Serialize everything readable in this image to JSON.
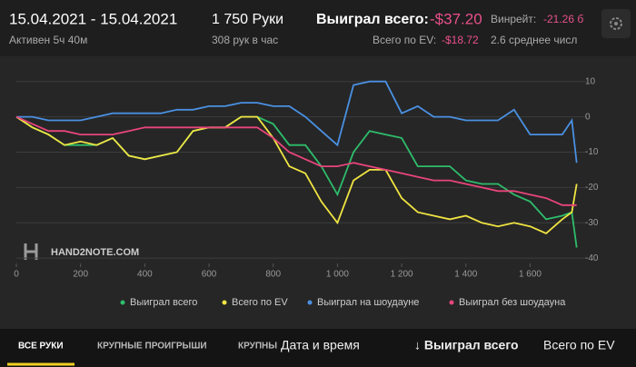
{
  "header": {
    "date_range": "15.04.2021 - 15.04.2021",
    "active": "Активен 5ч 40м",
    "hands": "1 750 Руки",
    "hands_per_hour": "308 рук в час",
    "won_label": "Выиграл всего:",
    "won_value": "-$37.20",
    "ev_label": "Всего по EV:",
    "ev_value": "-$18.72",
    "winrate_label": "Винрейт:",
    "winrate_value": "-21.26 б",
    "avg_label": "2.6 среднее числ"
  },
  "watermark": "HAND2NOTE.COM",
  "chart_data": {
    "type": "line",
    "x": [
      0,
      50,
      100,
      150,
      200,
      250,
      300,
      350,
      400,
      450,
      500,
      550,
      600,
      650,
      700,
      750,
      800,
      850,
      900,
      950,
      1000,
      1050,
      1100,
      1150,
      1200,
      1250,
      1300,
      1350,
      1400,
      1450,
      1500,
      1550,
      1600,
      1650,
      1700,
      1730,
      1745
    ],
    "series": [
      {
        "name": "Выиграл всего",
        "color": "#2ebd6b",
        "values": [
          0,
          -3,
          -5,
          -8,
          -8,
          -8,
          -6,
          -11,
          -12,
          -11,
          -10,
          -4,
          -3,
          -3,
          0,
          0,
          -2,
          -8,
          -8,
          -14,
          -22,
          -10,
          -4,
          -5,
          -6,
          -14,
          -14,
          -14,
          -18,
          -19,
          -19,
          -22,
          -24,
          -29,
          -28,
          -27,
          -37
        ]
      },
      {
        "name": "Всего по EV",
        "color": "#f0e442",
        "values": [
          0,
          -3,
          -5,
          -8,
          -7,
          -8,
          -6,
          -11,
          -12,
          -11,
          -10,
          -4,
          -3,
          -3,
          0,
          0,
          -6,
          -14,
          -16,
          -24,
          -30,
          -18,
          -15,
          -15,
          -23,
          -27,
          -28,
          -29,
          -28,
          -30,
          -31,
          -30,
          -31,
          -33,
          -29,
          -27,
          -19
        ]
      },
      {
        "name": "Выиграл на шоудауне",
        "color": "#4a90e2",
        "values": [
          0,
          0,
          -1,
          -1,
          -1,
          0,
          1,
          1,
          1,
          1,
          2,
          2,
          3,
          3,
          4,
          4,
          3,
          3,
          0,
          -4,
          -8,
          9,
          10,
          10,
          1,
          3,
          0,
          0,
          -1,
          -1,
          -1,
          2,
          -5,
          -5,
          -5,
          -1,
          -13
        ]
      },
      {
        "name": "Выиграл без шоудауна",
        "color": "#e8457a",
        "values": [
          0,
          -2,
          -4,
          -4,
          -5,
          -5,
          -5,
          -4,
          -3,
          -3,
          -3,
          -3,
          -3,
          -3,
          -3,
          -3,
          -6,
          -10,
          -12,
          -14,
          -14,
          -13,
          -14,
          -15,
          -16,
          -17,
          -18,
          -18,
          -19,
          -20,
          -21,
          -21,
          -22,
          -23,
          -25,
          -25,
          -25
        ]
      }
    ],
    "xlim": [
      0,
      1760
    ],
    "ylim": [
      -41.5,
      12.5
    ],
    "xticks": [
      0,
      200,
      400,
      600,
      800,
      {
        "value": 1000,
        "label": "1 000"
      },
      {
        "value": 1200,
        "label": "1 200"
      },
      {
        "value": 1400,
        "label": "1 400"
      },
      {
        "value": 1600,
        "label": "1 600"
      }
    ],
    "yticks": [
      10,
      0,
      -10,
      -20,
      -30,
      -40
    ],
    "grid": true
  },
  "tabs": [
    "ВСЕ РУКИ",
    "КРУПНЫЕ ПРОИГРЫШИ",
    "КРУПНЫ"
  ],
  "columns": [
    "Дата и время",
    "↓ Выиграл всего",
    "Всего по EV"
  ]
}
